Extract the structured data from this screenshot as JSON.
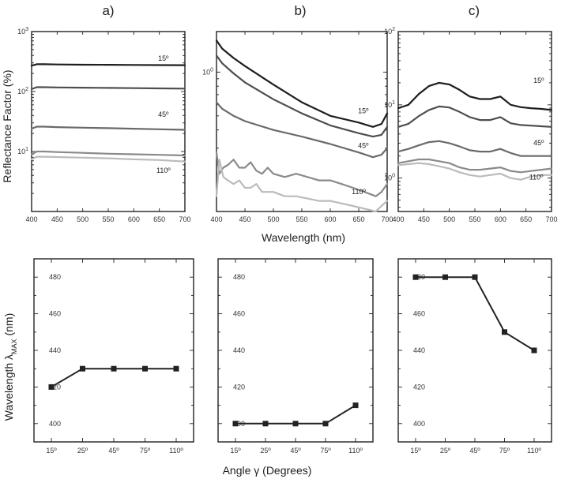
{
  "panel_labels": [
    "a)",
    "b)",
    "c)"
  ],
  "shared_axes": {
    "top_xlabel": "Wavelength (nm)",
    "top_ylabel": "Reflectance Factor (%)",
    "bottom_xlabel": "Angle γ (Degrees)",
    "bottom_ylabel": "Wavelength λ",
    "bottom_ylabel_sub": "MAX",
    "bottom_ylabel_unit": " (nm)"
  },
  "colors": {
    "15": "#1e1e1e",
    "25": "#4e4e4e",
    "45": "#6a6a6a",
    "75": "#8a8a8a",
    "110": "#bbbbbb",
    "marker": "#222222"
  },
  "chart_data": [
    {
      "type": "line",
      "panel": "a)",
      "ylog": true,
      "xlim": [
        400,
        700
      ],
      "ylim": [
        1,
        1000
      ],
      "xticks": [
        "400",
        "450",
        "500",
        "550",
        "600",
        "650",
        "700"
      ],
      "yticks": [
        {
          "v": 1000,
          "base": "10",
          "exp": "3"
        },
        {
          "v": 100,
          "base": "10",
          "exp": "2"
        },
        {
          "v": 10,
          "base": "10",
          "exp": "1"
        }
      ],
      "annotations": [
        {
          "text": "15º",
          "x": 658,
          "y": 325
        },
        {
          "text": "45º",
          "x": 658,
          "y": 38
        },
        {
          "text": "110º",
          "x": 658,
          "y": 4.4
        }
      ],
      "series": [
        {
          "key": "15",
          "x": [
            400,
            410,
            425,
            450,
            500,
            550,
            600,
            650,
            700
          ],
          "y": [
            270,
            285,
            285,
            283,
            280,
            279,
            278,
            276,
            275
          ]
        },
        {
          "key": "25",
          "x": [
            400,
            410,
            425,
            450,
            500,
            550,
            600,
            650,
            700
          ],
          "y": [
            110,
            118,
            118,
            117,
            116,
            115,
            114,
            113,
            112
          ]
        },
        {
          "key": "45",
          "x": [
            400,
            410,
            425,
            450,
            500,
            550,
            600,
            650,
            700
          ],
          "y": [
            24,
            26,
            26,
            25.5,
            25,
            24.5,
            24,
            23.5,
            23
          ]
        },
        {
          "key": "75",
          "x": [
            400,
            410,
            425,
            450,
            500,
            550,
            600,
            650,
            700
          ],
          "y": [
            9,
            10,
            10,
            9.8,
            9.5,
            9.2,
            9,
            8.8,
            8.6
          ]
        },
        {
          "key": "110",
          "x": [
            400,
            410,
            425,
            450,
            500,
            550,
            600,
            650,
            700
          ],
          "y": [
            7.4,
            8.2,
            8.2,
            8.1,
            7.9,
            7.7,
            7.4,
            7.2,
            6.8
          ]
        }
      ]
    },
    {
      "type": "line",
      "panel": "b)",
      "ylog": true,
      "xlim": [
        400,
        700
      ],
      "ylim": [
        0.11,
        1.9
      ],
      "xticks": [
        "400",
        "450",
        "500",
        "550",
        "600",
        "650",
        "700"
      ],
      "yticks": [
        {
          "v": 1,
          "base": "10",
          "exp": "0"
        }
      ],
      "annotations": [
        {
          "text": "15º",
          "x": 658,
          "y": 0.52
        },
        {
          "text": "45º",
          "x": 658,
          "y": 0.3
        },
        {
          "text": "110º",
          "x": 650,
          "y": 0.145
        }
      ],
      "series": [
        {
          "key": "15",
          "x": [
            400,
            410,
            430,
            450,
            500,
            550,
            600,
            650,
            675,
            690,
            700
          ],
          "y": [
            1.65,
            1.45,
            1.25,
            1.1,
            0.82,
            0.62,
            0.5,
            0.45,
            0.42,
            0.44,
            0.52
          ]
        },
        {
          "key": "25",
          "x": [
            400,
            410,
            430,
            450,
            500,
            550,
            600,
            650,
            675,
            690,
            700
          ],
          "y": [
            1.3,
            1.15,
            0.98,
            0.85,
            0.65,
            0.52,
            0.43,
            0.38,
            0.36,
            0.37,
            0.42
          ]
        },
        {
          "key": "45",
          "x": [
            400,
            410,
            430,
            450,
            500,
            550,
            600,
            650,
            675,
            690,
            700
          ],
          "y": [
            0.62,
            0.56,
            0.5,
            0.46,
            0.4,
            0.36,
            0.32,
            0.28,
            0.26,
            0.27,
            0.3
          ]
        },
        {
          "key": "75",
          "x": [
            400,
            405,
            412,
            420,
            430,
            440,
            450,
            460,
            470,
            480,
            490,
            500,
            520,
            540,
            560,
            580,
            600,
            620,
            640,
            660,
            680,
            690,
            700
          ],
          "y": [
            0.28,
            0.2,
            0.22,
            0.23,
            0.25,
            0.22,
            0.22,
            0.24,
            0.21,
            0.2,
            0.22,
            0.2,
            0.19,
            0.2,
            0.19,
            0.18,
            0.18,
            0.17,
            0.16,
            0.15,
            0.14,
            0.15,
            0.17
          ]
        },
        {
          "key": "110",
          "x": [
            400,
            405,
            412,
            420,
            430,
            440,
            450,
            460,
            470,
            480,
            490,
            500,
            520,
            540,
            560,
            580,
            600,
            620,
            640,
            660,
            680,
            690,
            700
          ],
          "y": [
            0.14,
            0.25,
            0.19,
            0.18,
            0.17,
            0.18,
            0.16,
            0.16,
            0.17,
            0.15,
            0.15,
            0.15,
            0.14,
            0.14,
            0.135,
            0.13,
            0.13,
            0.125,
            0.12,
            0.115,
            0.11,
            0.12,
            0.13
          ]
        }
      ]
    },
    {
      "type": "line",
      "panel": "c)",
      "ylog": true,
      "xlim": [
        400,
        700
      ],
      "ylim": [
        0.35,
        100
      ],
      "xticks": [
        "400",
        "450",
        "500",
        "550",
        "600",
        "650",
        "700"
      ],
      "yticks": [
        {
          "v": 100,
          "base": "10",
          "exp": "2"
        },
        {
          "v": 10,
          "base": "10",
          "exp": "1"
        },
        {
          "v": 1,
          "base": "10",
          "exp": "0"
        }
      ],
      "annotations": [
        {
          "text": "15º",
          "x": 675,
          "y": 20
        },
        {
          "text": "45º",
          "x": 675,
          "y": 2.8
        },
        {
          "text": "110º",
          "x": 670,
          "y": 0.95
        }
      ],
      "series": [
        {
          "key": "15",
          "x": [
            400,
            420,
            440,
            460,
            480,
            500,
            520,
            540,
            560,
            580,
            600,
            620,
            640,
            660,
            680,
            700
          ],
          "y": [
            9,
            10,
            14,
            18,
            20,
            19,
            16,
            13,
            12,
            12,
            13,
            10,
            9.3,
            9,
            8.8,
            8.5
          ]
        },
        {
          "key": "25",
          "x": [
            400,
            420,
            440,
            460,
            480,
            500,
            520,
            540,
            560,
            580,
            600,
            620,
            640,
            660,
            680,
            700
          ],
          "y": [
            5,
            5.5,
            7,
            8.5,
            9.5,
            9.2,
            8,
            6.8,
            6.2,
            6.2,
            6.8,
            5.6,
            5.3,
            5.2,
            5.1,
            5
          ]
        },
        {
          "key": "45",
          "x": [
            400,
            420,
            440,
            460,
            480,
            500,
            520,
            540,
            560,
            580,
            600,
            620,
            640,
            660,
            680,
            700
          ],
          "y": [
            2.3,
            2.5,
            2.8,
            3.1,
            3.2,
            3.0,
            2.7,
            2.4,
            2.3,
            2.3,
            2.5,
            2.2,
            2.0,
            2.0,
            2.0,
            2.0
          ]
        },
        {
          "key": "75",
          "x": [
            400,
            420,
            440,
            460,
            480,
            500,
            520,
            540,
            560,
            580,
            600,
            620,
            640,
            660,
            680,
            700
          ],
          "y": [
            1.6,
            1.7,
            1.8,
            1.8,
            1.7,
            1.6,
            1.4,
            1.3,
            1.3,
            1.35,
            1.4,
            1.25,
            1.2,
            1.25,
            1.3,
            1.35
          ]
        },
        {
          "key": "110",
          "x": [
            400,
            420,
            440,
            460,
            480,
            500,
            520,
            540,
            560,
            580,
            600,
            620,
            640,
            660,
            680,
            700
          ],
          "y": [
            1.5,
            1.55,
            1.6,
            1.55,
            1.45,
            1.35,
            1.2,
            1.1,
            1.05,
            1.1,
            1.15,
            1.0,
            0.95,
            1.05,
            1.1,
            1.1
          ]
        }
      ]
    },
    {
      "type": "line",
      "panel": "a) bottom",
      "categories": [
        "15º",
        "25º",
        "45º",
        "75º",
        "110º"
      ],
      "ylim": [
        390,
        490
      ],
      "yticks": [
        400,
        420,
        440,
        460,
        480
      ],
      "values": [
        420,
        430,
        430,
        430,
        430
      ]
    },
    {
      "type": "line",
      "panel": "b) bottom",
      "categories": [
        "15º",
        "25º",
        "45º",
        "75º",
        "110º"
      ],
      "ylim": [
        390,
        490
      ],
      "yticks": [
        400,
        420,
        440,
        460,
        480
      ],
      "values": [
        400,
        400,
        400,
        400,
        410
      ]
    },
    {
      "type": "line",
      "panel": "c) bottom",
      "categories": [
        "15º",
        "25º",
        "45º",
        "75º",
        "110º"
      ],
      "ylim": [
        390,
        490
      ],
      "yticks": [
        400,
        420,
        440,
        460,
        480
      ],
      "values": [
        480,
        480,
        480,
        450,
        440
      ]
    }
  ]
}
